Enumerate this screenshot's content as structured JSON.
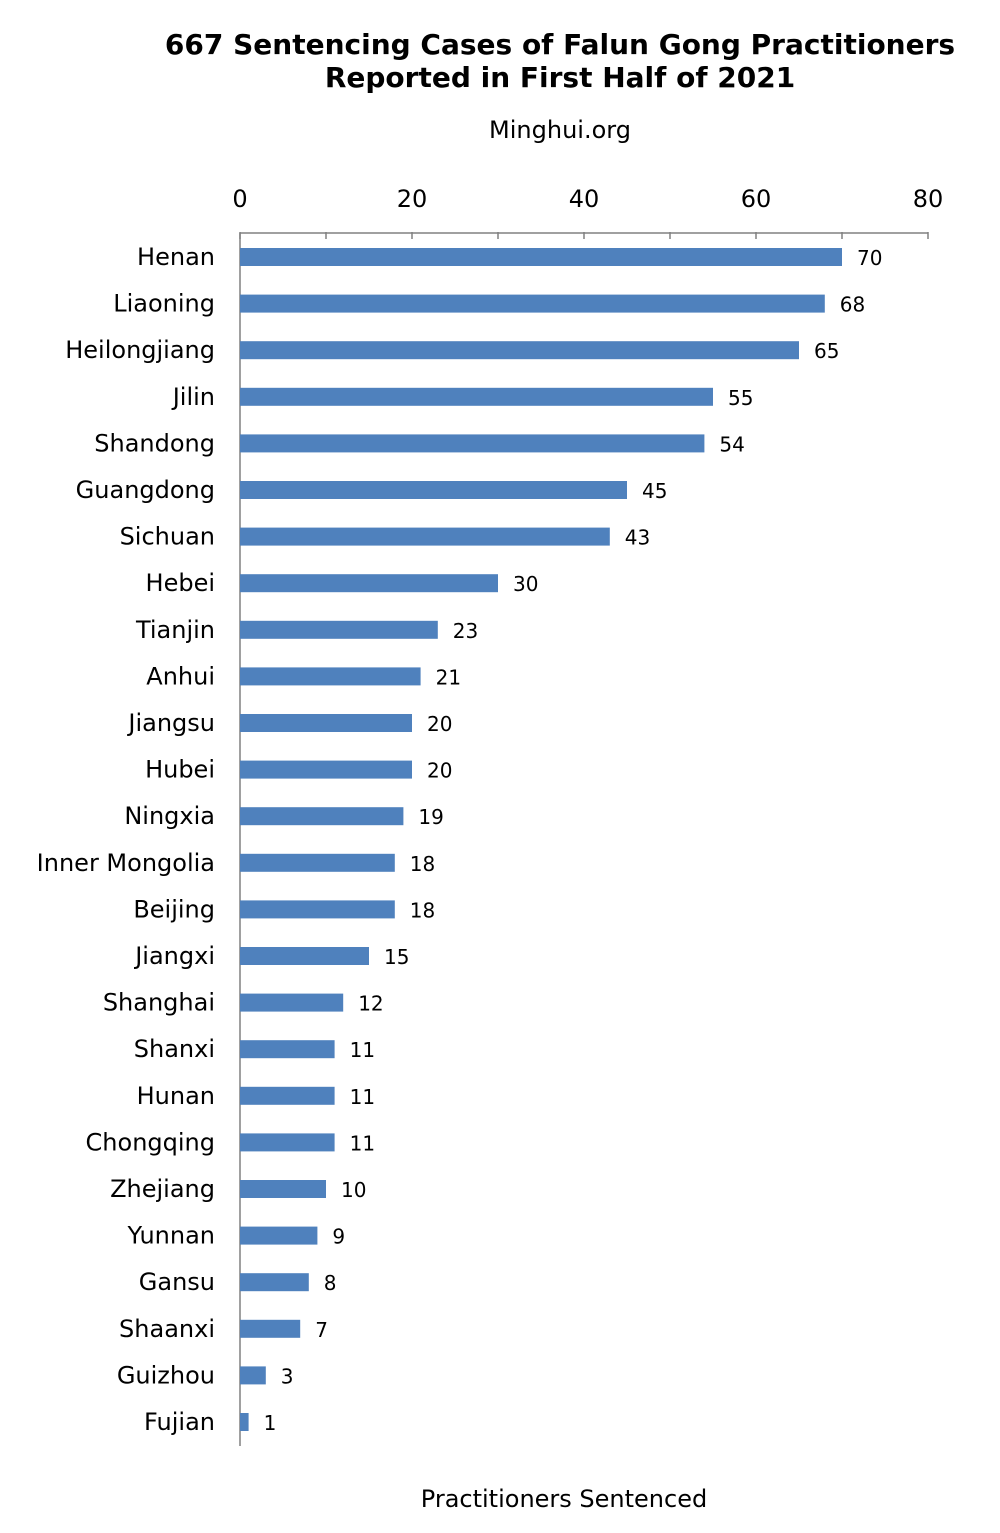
{
  "chart_data": {
    "type": "bar",
    "orientation": "horizontal",
    "title_lines": [
      "667 Sentencing Cases of Falun Gong Practitioners",
      "Reported in First Half of 2021"
    ],
    "subtitle": "Minghui.org",
    "xlabel": "Practitioners Sentenced",
    "ylabel": "",
    "xlim": [
      0,
      80
    ],
    "x_ticks": [
      "0",
      "20",
      "40",
      "60",
      "80"
    ],
    "axis_position": "top",
    "grid": false,
    "legend": "none",
    "bar_color": "#4F81BD",
    "categories": [
      "Henan",
      "Liaoning",
      "Heilongjiang",
      "Jilin",
      "Shandong",
      "Guangdong",
      "Sichuan",
      "Hebei",
      "Tianjin",
      "Anhui",
      "Jiangsu",
      "Hubei",
      "Ningxia",
      "Inner Mongolia",
      "Beijing",
      "Jiangxi",
      "Shanghai",
      "Shanxi",
      "Hunan",
      "Chongqing",
      "Zhejiang",
      "Yunnan",
      "Gansu",
      "Shaanxi",
      "Guizhou",
      "Fujian"
    ],
    "values": [
      70,
      68,
      65,
      55,
      54,
      45,
      43,
      30,
      23,
      21,
      20,
      20,
      19,
      18,
      18,
      15,
      12,
      11,
      11,
      11,
      10,
      9,
      8,
      7,
      3,
      1
    ]
  }
}
